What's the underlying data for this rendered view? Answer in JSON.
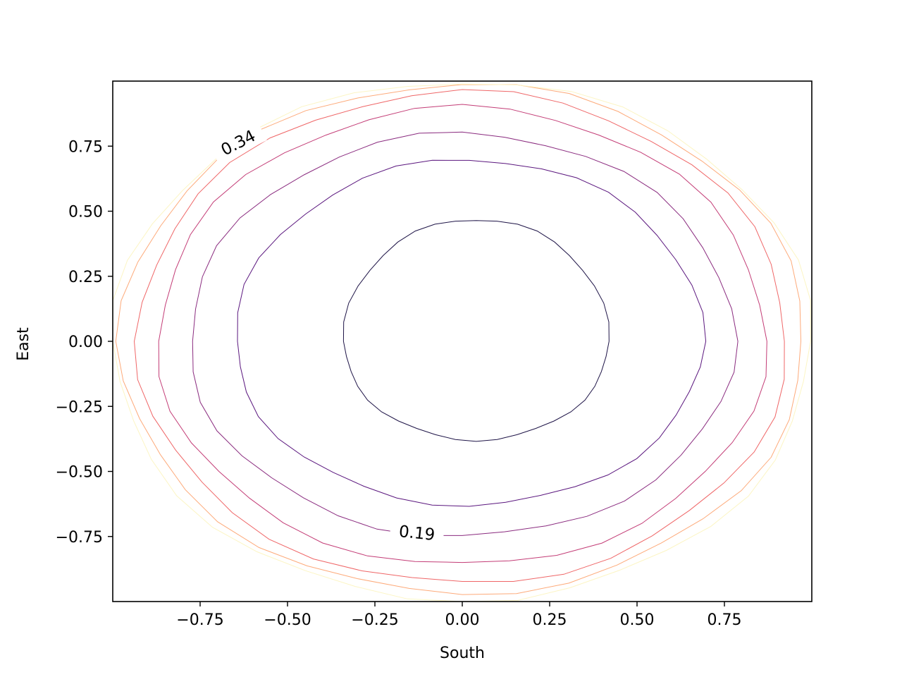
{
  "chart_data": {
    "type": "contour",
    "title": "",
    "xlabel": "South",
    "ylabel": "East",
    "xlim": [
      -1.0,
      1.0
    ],
    "ylim": [
      -1.0,
      1.0
    ],
    "grid": false,
    "x_ticks": [
      -0.75,
      -0.5,
      -0.25,
      0.0,
      0.25,
      0.5,
      0.75
    ],
    "x_tick_labels": [
      "−0.75",
      "−0.50",
      "−0.25",
      "0.00",
      "0.25",
      "0.50",
      "0.75"
    ],
    "y_ticks": [
      0.75,
      0.5,
      0.25,
      0.0,
      -0.25,
      -0.5,
      -0.75
    ],
    "y_tick_labels": [
      "0.75",
      "0.50",
      "0.25",
      "0.00",
      "−0.25",
      "−0.50",
      "−0.75"
    ],
    "colormap": "magma",
    "levels": [
      {
        "rx": 0.38,
        "ry_top": 0.47,
        "ry_bottom": 0.38,
        "cx": 0.04,
        "color": "#1e1447"
      },
      {
        "rx": 0.67,
        "ry_top": 0.7,
        "ry_bottom": 0.63,
        "cx": 0.02,
        "color": "#5a167e"
      },
      {
        "rx": 0.78,
        "ry_top": 0.8,
        "ry_bottom": 0.75,
        "cx": 0.0,
        "color": "#8a2b7f"
      },
      {
        "rx": 0.87,
        "ry_top": 0.9,
        "ry_bottom": 0.86,
        "cx": 0.0,
        "color": "#c33c76"
      },
      {
        "rx": 0.93,
        "ry_top": 0.96,
        "ry_bottom": 0.93,
        "cx": 0.0,
        "color": "#ef6667"
      },
      {
        "rx": 0.98,
        "ry_top": 0.99,
        "ry_bottom": 0.97,
        "cx": 0.0,
        "color": "#fdaa7a"
      },
      {
        "rx": 1.0,
        "ry_top": 1.0,
        "ry_bottom": 1.0,
        "cx": 0.0,
        "color": "#fcf5c4"
      }
    ],
    "contour_labels": [
      {
        "text": "0.34",
        "x": -0.64,
        "y": 0.76,
        "angle": -27
      },
      {
        "text": "0.19",
        "x": -0.13,
        "y": -0.74,
        "angle": 6
      }
    ]
  }
}
